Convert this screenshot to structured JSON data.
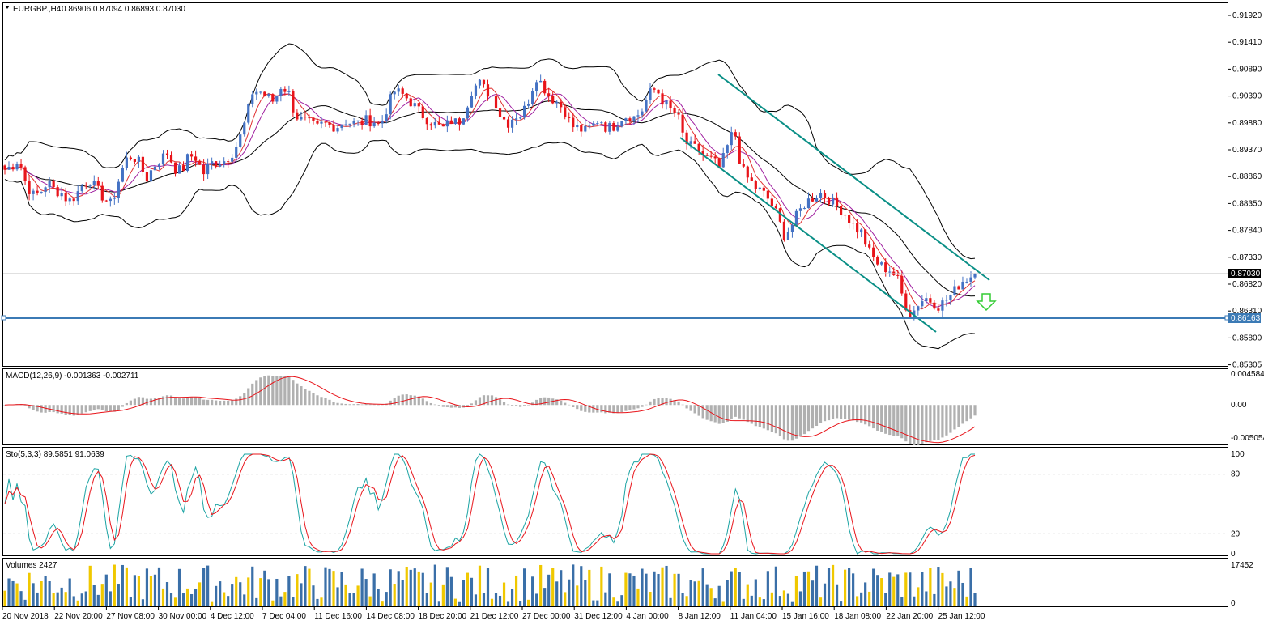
{
  "header": {
    "symbol": "EURGBP.,H4",
    "ohlc": "0.86906 0.87094 0.86893 0.87030"
  },
  "price_axis": {
    "ticks": [
      "0.91920",
      "0.91410",
      "0.90890",
      "0.90390",
      "0.89880",
      "0.89370",
      "0.88860",
      "0.88350",
      "0.87840",
      "0.87330",
      "0.86820",
      "0.86310",
      "0.85800",
      "0.85305"
    ],
    "current_price_label": "0.87030",
    "hline_label": "0.86163"
  },
  "time_axis": {
    "labels": [
      "20 Nov 2018",
      "22 Nov 20:00",
      "27 Nov 08:00",
      "30 Nov 00:00",
      "4 Dec 12:00",
      "7 Dec 04:00",
      "11 Dec 16:00",
      "14 Dec 08:00",
      "18 Dec 20:00",
      "21 Dec 12:00",
      "27 Dec 00:00",
      "31 Dec 12:00",
      "4 Jan 00:00",
      "8 Jan 12:00",
      "11 Jan 04:00",
      "15 Jan 16:00",
      "18 Jan 08:00",
      "22 Jan 20:00",
      "25 Jan 12:00"
    ]
  },
  "macd": {
    "label": "MACD(12,26,9) -0.001363 -0.002711",
    "ticks": [
      "0.004584",
      "0.00",
      "-0.005054"
    ]
  },
  "stoch": {
    "label": "Sto(5,3,3) 89.5851 91.0639",
    "ticks": [
      "100",
      "80",
      "20",
      "0"
    ]
  },
  "volumes": {
    "label": "Volumes 2427",
    "ticks": [
      "17452",
      "0"
    ]
  },
  "colors": {
    "bull": "#4472c4",
    "bear": "#e8141a",
    "channel": "#0a8f86",
    "hline": "#3b7ab5",
    "arrow": "#33cc33"
  },
  "chart_data": {
    "type": "candlestick",
    "title": "EURGBP.,H4",
    "ylim": [
      0.853,
      0.921
    ],
    "current_price": 0.8703,
    "horizontal_line": 0.86163,
    "anchors": [
      0.8898,
      0.8905,
      0.8918,
      0.887,
      0.885,
      0.8855,
      0.8875,
      0.886,
      0.8855,
      0.8838,
      0.885,
      0.887,
      0.888,
      0.886,
      0.8845,
      0.8832,
      0.8875,
      0.8915,
      0.8925,
      0.891,
      0.888,
      0.8905,
      0.8918,
      0.893,
      0.89,
      0.8895,
      0.8925,
      0.892,
      0.889,
      0.891,
      0.8912,
      0.8915,
      0.8928,
      0.895,
      0.899,
      0.9045,
      0.9045,
      0.9035,
      0.9025,
      0.9055,
      0.9045,
      0.9,
      0.899,
      0.8985,
      0.8975,
      0.8985,
      0.898,
      0.898,
      0.899,
      0.8985,
      0.8985,
      0.899,
      0.899,
      0.898,
      0.9015,
      0.9045,
      0.904,
      0.903,
      0.9015,
      0.9,
      0.899,
      0.898,
      0.8975,
      0.899,
      0.8985,
      0.901,
      0.905,
      0.906,
      0.9045,
      0.9035,
      0.9,
      0.8985,
      0.9,
      0.9,
      0.903,
      0.9075,
      0.9055,
      0.9035,
      0.9025,
      0.901,
      0.898,
      0.8975,
      0.897,
      0.898,
      0.8995,
      0.8975,
      0.898,
      0.8995,
      0.9,
      0.8995,
      0.901,
      0.904,
      0.905,
      0.9025,
      0.901,
      0.9,
      0.895,
      0.894,
      0.8935,
      0.892,
      0.8915,
      0.89,
      0.894,
      0.8975,
      0.89,
      0.888,
      0.8865,
      0.8855,
      0.884,
      0.8815,
      0.8775,
      0.879,
      0.8815,
      0.8835,
      0.8845,
      0.8855,
      0.8848,
      0.8835,
      0.8825,
      0.881,
      0.879,
      0.878,
      0.8745,
      0.8725,
      0.8715,
      0.871,
      0.8695,
      0.865,
      0.8625,
      0.8648,
      0.8658,
      0.865,
      0.8642,
      0.8655,
      0.8668,
      0.8688,
      0.8695,
      0.8703
    ],
    "series": [
      {
        "name": "Bollinger Bands"
      },
      {
        "name": "Moving Averages"
      },
      {
        "name": "Descending channel"
      }
    ],
    "macd": {
      "macd": -0.001363,
      "signal": -0.002711,
      "ylim": [
        -0.005054,
        0.004584
      ]
    },
    "stochastic": {
      "k": 89.5851,
      "d": 91.0639,
      "levels": [
        20,
        80
      ],
      "ylim": [
        0,
        100
      ]
    },
    "volume": {
      "last": 2427,
      "ymax": 17452
    }
  }
}
